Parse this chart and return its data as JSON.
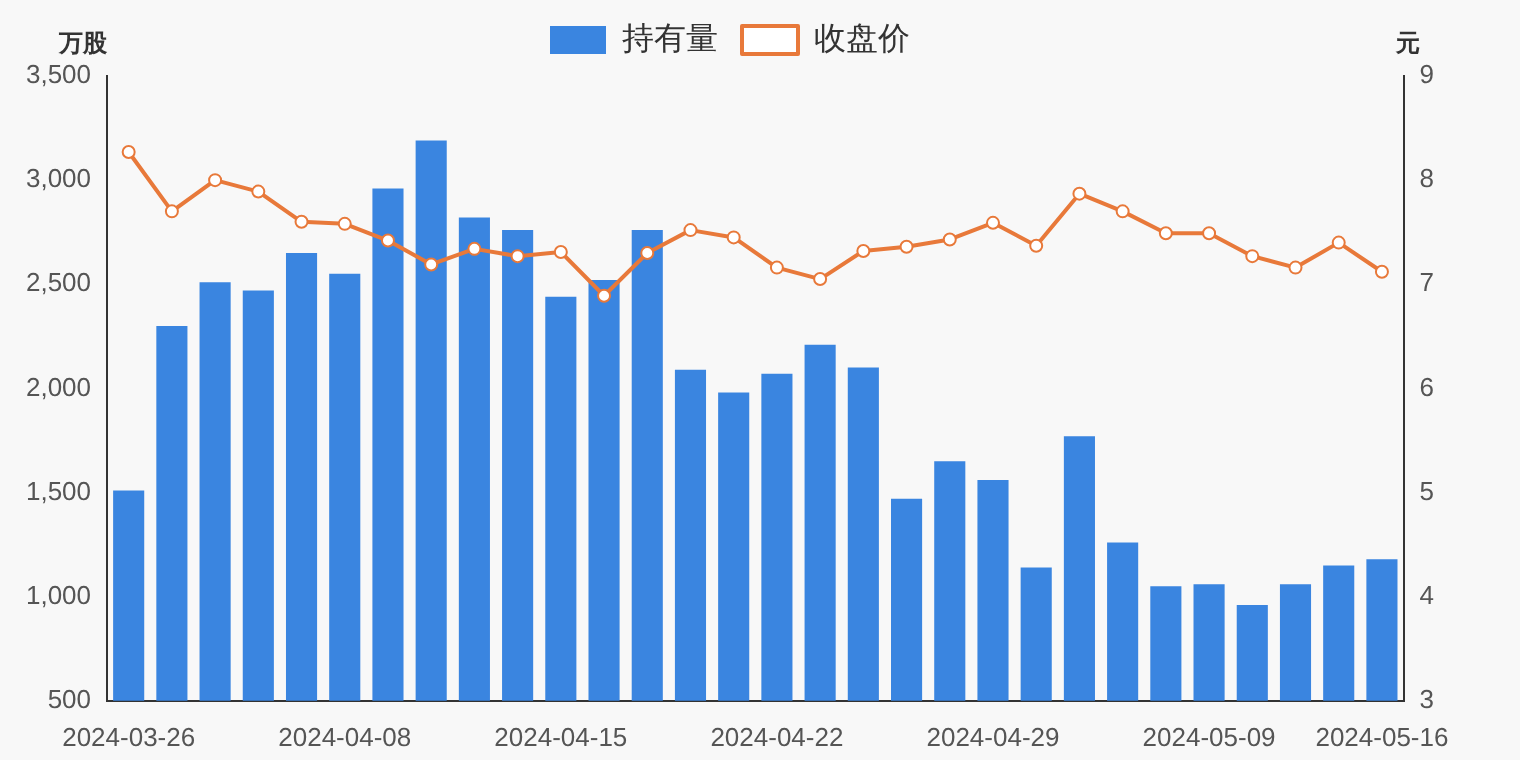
{
  "chart_data": {
    "type": "bar",
    "categories": [
      "2024-03-26",
      null,
      null,
      null,
      null,
      "2024-04-08",
      null,
      null,
      null,
      null,
      "2024-04-15",
      null,
      null,
      null,
      null,
      "2024-04-22",
      null,
      null,
      null,
      null,
      "2024-04-29",
      null,
      null,
      null,
      null,
      "2024-05-09",
      null,
      null,
      null,
      "2024-05-16"
    ],
    "series": [
      {
        "name": "持有量",
        "color": "#3a85e0",
        "values": [
          1510,
          2300,
          2510,
          2470,
          2650,
          2550,
          2960,
          3190,
          2820,
          2760,
          2440,
          2520,
          2760,
          2090,
          1980,
          2070,
          2210,
          2100,
          1470,
          1650,
          1560,
          1140,
          1770,
          1260,
          1050,
          1060,
          960,
          1060,
          1150,
          1180
        ]
      },
      {
        "name": "收盘价",
        "type": "line",
        "axis": "y2",
        "color": "#e8793a",
        "values": [
          8.27,
          7.7,
          8.0,
          7.89,
          7.6,
          7.58,
          7.42,
          7.19,
          7.34,
          7.27,
          7.31,
          6.89,
          7.3,
          7.52,
          7.45,
          7.16,
          7.05,
          7.32,
          7.36,
          7.43,
          7.59,
          7.37,
          7.87,
          7.7,
          7.49,
          7.49,
          7.27,
          7.16,
          7.4,
          7.12
        ]
      }
    ],
    "ylabel": "万股",
    "y2label": "元",
    "ylim": [
      500,
      3500
    ],
    "yticks": [
      500,
      {
        "value": 1000,
        "label": "1,000"
      },
      {
        "value": 1500,
        "label": "1,500"
      },
      {
        "value": 2000,
        "label": "2,000"
      },
      {
        "value": 2500,
        "label": "2,500"
      },
      {
        "value": 3000,
        "label": "3,000"
      },
      {
        "value": 3500,
        "label": "3,500"
      }
    ],
    "y2lim": [
      3,
      9
    ],
    "y2ticks": [
      3,
      4,
      5,
      6,
      7,
      8,
      9
    ],
    "grid": false,
    "legend": "top",
    "marker": "circle",
    "line_style": "solid"
  }
}
